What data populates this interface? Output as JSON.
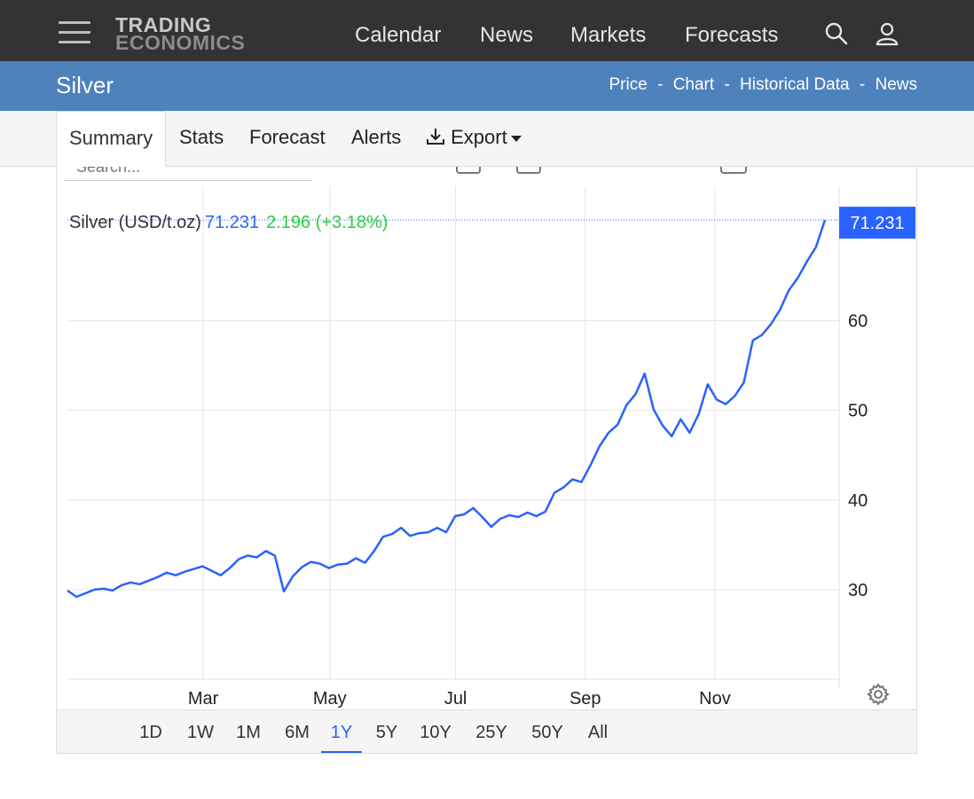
{
  "brand": {
    "line1": "TRADING",
    "line2": "ECONOMICS"
  },
  "nav": {
    "calendar": "Calendar",
    "news": "News",
    "markets": "Markets",
    "forecasts": "Forecasts"
  },
  "page": {
    "title": "Silver"
  },
  "sub_links": [
    "Price",
    "Chart",
    "Historical Data",
    "News"
  ],
  "sub_sep": "-",
  "tabs": {
    "summary": "Summary",
    "stats": "Stats",
    "forecast": "Forecast",
    "alerts": "Alerts",
    "export": "Export"
  },
  "search": {
    "placeholder": "Search..."
  },
  "legend": {
    "name": "Silver (USD/t.oz)",
    "price": "71.231",
    "change": "2.196 (+3.18%)"
  },
  "colors": {
    "line": "#2962ff",
    "change_up": "#2ecc40",
    "header_bg": "#333333",
    "title_bg": "#4d82bd"
  },
  "icons": [
    "menu-icon",
    "search-icon",
    "user-icon",
    "download-icon",
    "settings-gear-icon"
  ],
  "range": {
    "options": [
      "1D",
      "1W",
      "1M",
      "6M",
      "1Y",
      "5Y",
      "10Y",
      "25Y",
      "50Y",
      "All"
    ],
    "selected": "1Y"
  },
  "chart_data": {
    "type": "line",
    "title": "",
    "xlabel": "",
    "ylabel": "",
    "x_ticks": [
      "Mar",
      "May",
      "Jul",
      "Sep",
      "Nov"
    ],
    "y_ticks": [
      30,
      40,
      50,
      60
    ],
    "ylim": [
      20,
      75
    ],
    "last_value_label": "71.231",
    "grid": true,
    "series": [
      {
        "values": [
          29.9,
          29.2,
          29.6,
          30.0,
          30.1,
          29.9,
          30.5,
          30.8,
          30.6,
          31.0,
          31.4,
          31.9,
          31.6,
          32.0,
          32.3,
          32.6,
          32.1,
          31.6,
          32.4,
          33.4,
          33.8,
          33.6,
          34.3,
          33.8,
          29.8,
          31.5,
          32.5,
          33.1,
          32.9,
          32.4,
          32.8,
          32.9,
          33.5,
          33.0,
          34.3,
          35.9,
          36.2,
          36.9,
          36.0,
          36.3,
          36.4,
          36.9,
          36.4,
          38.2,
          38.4,
          39.1,
          38.1,
          37.0,
          37.9,
          38.3,
          38.1,
          38.6,
          38.2,
          38.7,
          40.8,
          41.4,
          42.3,
          42.0,
          43.9,
          46.0,
          47.5,
          48.4,
          50.6,
          51.8,
          54.1,
          50.1,
          48.3,
          47.1,
          49.0,
          47.5,
          49.6,
          52.9,
          51.2,
          50.7,
          51.6,
          53.1,
          57.8,
          58.4,
          59.6,
          61.2,
          63.4,
          64.8,
          66.6,
          68.2,
          71.231
        ]
      }
    ]
  }
}
